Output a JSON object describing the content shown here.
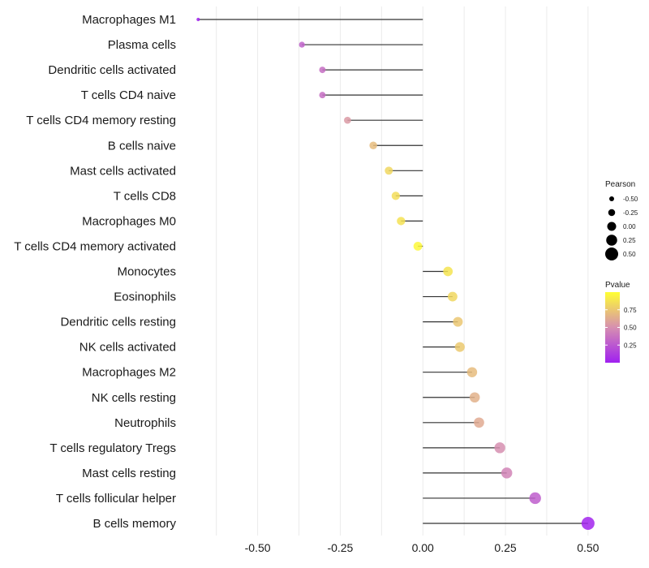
{
  "chart_data": {
    "type": "lollipop",
    "title": "",
    "xlabel": "",
    "ylabel": "",
    "xlim": [
      -0.72,
      0.52
    ],
    "x_ticks": [
      -0.5,
      -0.25,
      0.0,
      0.25,
      0.5
    ],
    "x_tick_labels": [
      "-0.50",
      "-0.25",
      "0.00",
      "0.25",
      "0.50"
    ],
    "grid": true,
    "categories": [
      "Macrophages M1",
      "Plasma cells",
      "Dendritic cells activated",
      "T cells CD4 naive",
      "T cells CD4 memory resting",
      "B cells naive",
      "Mast cells activated",
      "T cells CD8",
      "Macrophages M0",
      "T cells CD4 memory activated",
      "Monocytes",
      "Eosinophils",
      "Dendritic cells resting",
      "NK cells activated",
      "Macrophages M2",
      "NK cells resting",
      "Neutrophils",
      "T cells regulatory  Tregs ",
      "Mast cells resting",
      "T cells follicular helper",
      "B cells memory"
    ],
    "pearson": [
      -0.68,
      -0.366,
      -0.304,
      -0.304,
      -0.228,
      -0.15,
      -0.103,
      -0.082,
      -0.066,
      -0.015,
      0.076,
      0.09,
      0.106,
      0.112,
      0.149,
      0.157,
      0.17,
      0.233,
      0.254,
      0.34,
      0.5
    ],
    "pvalue": [
      0.01,
      0.3,
      0.35,
      0.35,
      0.55,
      0.7,
      0.82,
      0.85,
      0.87,
      0.97,
      0.88,
      0.82,
      0.75,
      0.76,
      0.7,
      0.65,
      0.62,
      0.5,
      0.45,
      0.28,
      0.02
    ],
    "size_legend": {
      "title": "Pearson",
      "values": [
        -0.5,
        -0.25,
        0.0,
        0.25,
        0.5
      ],
      "labels": [
        "-0.50",
        "-0.25",
        "0.00",
        "0.25",
        "0.50"
      ]
    },
    "color_legend": {
      "title": "Pvalue",
      "ticks": [
        0.25,
        0.5,
        0.75
      ],
      "tick_labels": [
        "0.25",
        "0.50",
        "0.75"
      ],
      "range": [
        0.0,
        1.0
      ],
      "low_color": "#a020f0",
      "mid_color": "#d68fb0",
      "high_color": "#ffff33"
    },
    "segment_color": "#333333",
    "gridline_color": "#ebebeb"
  }
}
